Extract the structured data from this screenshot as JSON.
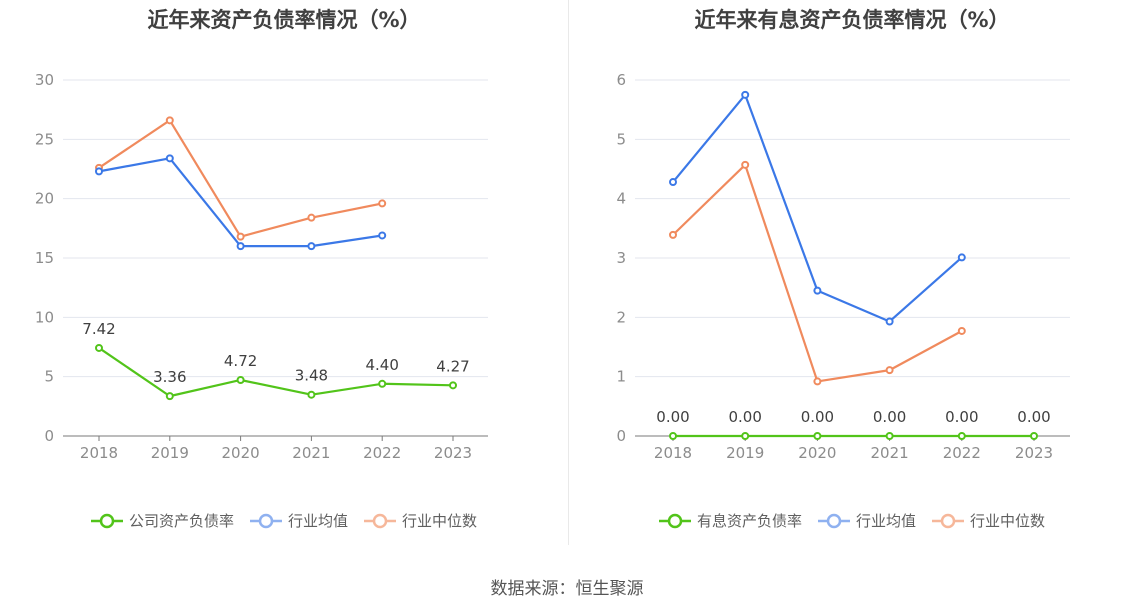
{
  "chart_data": [
    {
      "type": "line",
      "title": "近年来资产负债率情况（%）",
      "categories": [
        "2018",
        "2019",
        "2020",
        "2021",
        "2022",
        "2023"
      ],
      "ylim": [
        0,
        30
      ],
      "yticks": [
        0,
        5,
        10,
        15,
        20,
        25,
        30
      ],
      "grid": true,
      "legend_position": "bottom",
      "series": [
        {
          "name": "公司资产负债率",
          "color": "#52c41a",
          "values": [
            7.42,
            3.36,
            4.72,
            3.48,
            4.4,
            4.27
          ],
          "labels": [
            "7.42",
            "3.36",
            "4.72",
            "3.48",
            "4.40",
            "4.27"
          ]
        },
        {
          "name": "行业均值",
          "color": "#3b78e7",
          "values": [
            22.3,
            23.4,
            16.0,
            16.0,
            16.9,
            null
          ]
        },
        {
          "name": "行业中位数",
          "color": "#f08a5d",
          "values": [
            22.6,
            26.6,
            16.8,
            18.4,
            19.6,
            null
          ]
        }
      ]
    },
    {
      "type": "line",
      "title": "近年来有息资产负债率情况（%）",
      "categories": [
        "2018",
        "2019",
        "2020",
        "2021",
        "2022",
        "2023"
      ],
      "ylim": [
        0,
        6
      ],
      "yticks": [
        0,
        1,
        2,
        3,
        4,
        5,
        6
      ],
      "grid": true,
      "legend_position": "bottom",
      "series": [
        {
          "name": "有息资产负债率",
          "color": "#52c41a",
          "values": [
            0,
            0,
            0,
            0,
            0,
            0
          ],
          "labels": [
            "0.00",
            "0.00",
            "0.00",
            "0.00",
            "0.00",
            "0.00"
          ]
        },
        {
          "name": "行业均值",
          "color": "#3b78e7",
          "values": [
            4.28,
            5.75,
            2.45,
            1.93,
            3.01,
            null
          ]
        },
        {
          "name": "行业中位数",
          "color": "#f08a5d",
          "values": [
            3.39,
            4.57,
            0.92,
            1.11,
            1.77,
            null
          ]
        }
      ]
    }
  ],
  "source": "数据来源：恒生聚源"
}
